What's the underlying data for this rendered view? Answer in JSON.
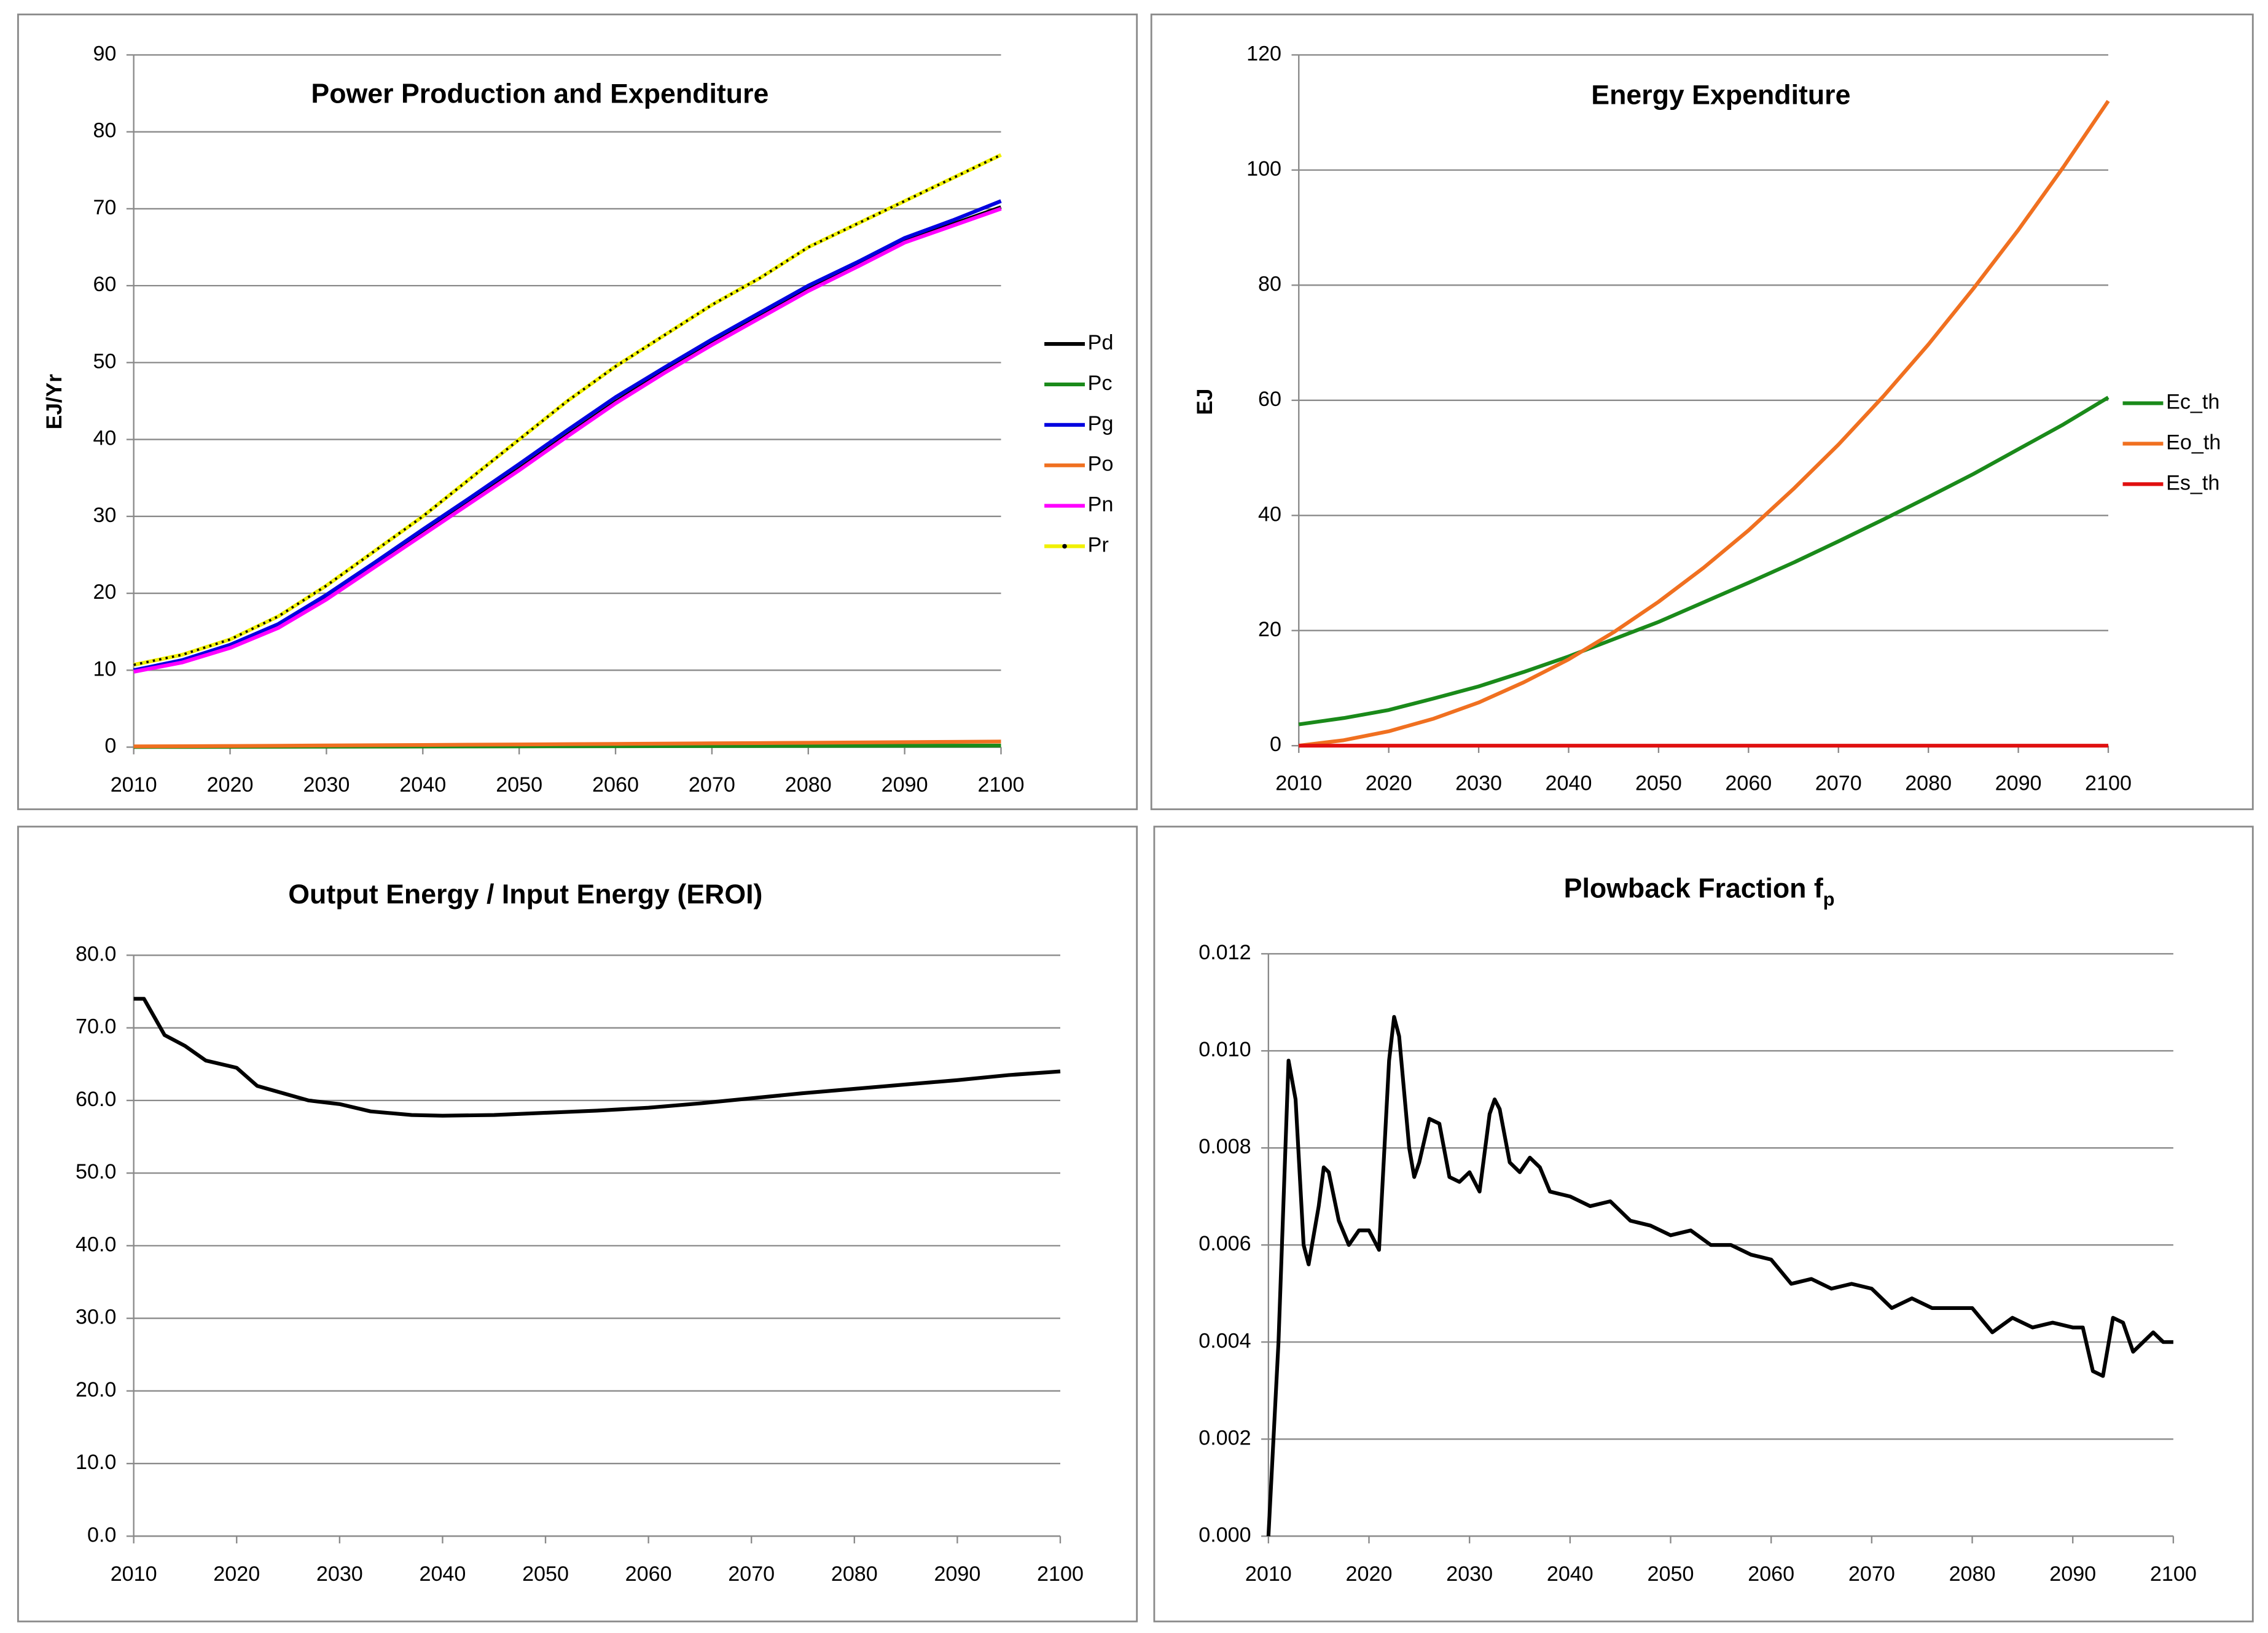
{
  "chart_data": [
    {
      "type": "line",
      "title": "Power Production and Expenditure",
      "y_label": "EJ/Yr",
      "x": [
        2010,
        2015,
        2020,
        2025,
        2030,
        2035,
        2040,
        2045,
        2050,
        2055,
        2060,
        2065,
        2070,
        2075,
        2080,
        2085,
        2090,
        2095,
        2100
      ],
      "series": [
        {
          "name": "Pd",
          "color": "#000000",
          "values": [
            10,
            11.2,
            13.1,
            15.7,
            19.4,
            23.6,
            27.8,
            32,
            36.2,
            40.6,
            44.9,
            48.8,
            52.5,
            56,
            59.5,
            62.6,
            65.8,
            68,
            70.2
          ]
        },
        {
          "name": "Pc",
          "color": "#1a8a1a",
          "values": [
            0.02,
            0.03,
            0.04,
            0.05,
            0.06,
            0.07,
            0.08,
            0.09,
            0.1,
            0.11,
            0.12,
            0.13,
            0.14,
            0.15,
            0.16,
            0.17,
            0.18,
            0.19,
            0.2
          ]
        },
        {
          "name": "Pg",
          "color": "#0000e0",
          "values": [
            10,
            11.3,
            13.3,
            16,
            19.8,
            24,
            28.3,
            32.5,
            36.8,
            41.2,
            45.5,
            49.3,
            53,
            56.5,
            60,
            63,
            66.2,
            68.5,
            71
          ]
        },
        {
          "name": "Po",
          "color": "#f07020",
          "values": [
            0.1,
            0.12,
            0.15,
            0.18,
            0.22,
            0.25,
            0.28,
            0.32,
            0.35,
            0.39,
            0.42,
            0.46,
            0.5,
            0.53,
            0.57,
            0.61,
            0.65,
            0.69,
            0.73
          ]
        },
        {
          "name": "Pn",
          "color": "#ff00ff",
          "values": [
            9.8,
            11,
            12.9,
            15.5,
            19.2,
            23.4,
            27.6,
            31.8,
            36,
            40.4,
            44.7,
            48.6,
            52.3,
            55.8,
            59.3,
            62.4,
            65.6,
            67.8,
            70
          ]
        },
        {
          "name": "Pr",
          "color": "#f0f000",
          "marker_color": "#000000",
          "values": [
            10.7,
            12,
            14,
            17,
            21,
            25.5,
            30,
            35,
            40,
            45,
            49.5,
            53.5,
            57.5,
            61,
            65,
            68,
            71,
            74,
            77
          ]
        }
      ],
      "xlim": [
        2010,
        2100
      ],
      "xticks": [
        2010,
        2020,
        2030,
        2040,
        2050,
        2060,
        2070,
        2080,
        2090,
        2100
      ],
      "ylim": [
        0,
        90
      ],
      "yticks": [
        0,
        10,
        20,
        30,
        40,
        50,
        60,
        70,
        80,
        90
      ],
      "grid": true,
      "legend": "right"
    },
    {
      "type": "line",
      "title": "Energy Expenditure",
      "y_label": "EJ",
      "x": [
        2010,
        2015,
        2020,
        2025,
        2030,
        2035,
        2040,
        2045,
        2050,
        2055,
        2060,
        2065,
        2070,
        2075,
        2080,
        2085,
        2090,
        2095,
        2100
      ],
      "series": [
        {
          "name": "Ec_th",
          "color": "#1a8a1a",
          "values": [
            3.7,
            4.8,
            6.2,
            8.2,
            10.3,
            12.8,
            15.5,
            18.5,
            21.5,
            24.9,
            28.3,
            31.8,
            35.5,
            39.3,
            43.2,
            47.2,
            51.5,
            55.8,
            60.5
          ]
        },
        {
          "name": "Eo_th",
          "color": "#f07020",
          "values": [
            0,
            0.95,
            2.5,
            4.7,
            7.5,
            11,
            15,
            19.7,
            25,
            30.9,
            37.4,
            44.6,
            52.3,
            60.7,
            69.7,
            79.4,
            89.6,
            100.5,
            112
          ]
        },
        {
          "name": "Es_th",
          "color": "#e01010",
          "values": [
            0,
            0,
            0,
            0,
            0,
            0,
            0,
            0,
            0,
            0,
            0,
            0,
            0,
            0,
            0,
            0,
            0,
            0,
            0
          ]
        }
      ],
      "xlim": [
        2010,
        2100
      ],
      "xticks": [
        2010,
        2020,
        2030,
        2040,
        2050,
        2060,
        2070,
        2080,
        2090,
        2100
      ],
      "ylim": [
        0,
        120
      ],
      "yticks": [
        0,
        20,
        40,
        60,
        80,
        100,
        120
      ],
      "grid": true,
      "legend": "right"
    },
    {
      "type": "line",
      "title": "Output Energy / Input Energy (EROI)",
      "x": [
        2010,
        2011,
        2013,
        2015,
        2017,
        2020,
        2022,
        2025,
        2027,
        2030,
        2033,
        2037,
        2040,
        2045,
        2050,
        2055,
        2060,
        2065,
        2070,
        2075,
        2080,
        2085,
        2090,
        2095,
        2100
      ],
      "series": [
        {
          "color": "#000000",
          "values": [
            74,
            74,
            69,
            67.5,
            65.5,
            64.5,
            62,
            60.8,
            60,
            59.5,
            58.5,
            58,
            57.9,
            58,
            58.3,
            58.6,
            59,
            59.6,
            60.3,
            61,
            61.6,
            62.2,
            62.8,
            63.5,
            64
          ]
        }
      ],
      "xlim": [
        2010,
        2100
      ],
      "xticks": [
        2010,
        2020,
        2030,
        2040,
        2050,
        2060,
        2070,
        2080,
        2090,
        2100
      ],
      "ylim": [
        0,
        80
      ],
      "yticks": [
        {
          "value": 0,
          "label": "0.0"
        },
        {
          "value": 10,
          "label": "10.0"
        },
        {
          "value": 20,
          "label": "20.0"
        },
        {
          "value": 30,
          "label": "30.0"
        },
        {
          "value": 40,
          "label": "40.0"
        },
        {
          "value": 50,
          "label": "50.0"
        },
        {
          "value": 60,
          "label": "60.0"
        },
        {
          "value": 70,
          "label": "70.0"
        },
        {
          "value": 80,
          "label": "80.0"
        }
      ],
      "grid": true
    },
    {
      "type": "line",
      "title": "Plowback Fraction f",
      "title_subscript": "p",
      "x": [
        2010,
        2011,
        2012,
        2012.7,
        2013.5,
        2014,
        2015,
        2015.5,
        2016,
        2017,
        2018,
        2019,
        2020,
        2021,
        2022,
        2022.5,
        2023,
        2024,
        2024.5,
        2025,
        2026,
        2027,
        2028,
        2029,
        2030,
        2031,
        2032,
        2032.5,
        2033,
        2034,
        2035,
        2036,
        2037,
        2038,
        2040,
        2042,
        2044,
        2046,
        2048,
        2050,
        2052,
        2054,
        2056,
        2058,
        2060,
        2062,
        2064,
        2066,
        2068,
        2070,
        2072,
        2074,
        2076,
        2078,
        2080,
        2082,
        2084,
        2086,
        2088,
        2090,
        2091,
        2092,
        2093,
        2094,
        2095,
        2096,
        2097,
        2098,
        2099,
        2100
      ],
      "series": [
        {
          "color": "#000000",
          "values": [
            0,
            0.004,
            0.0098,
            0.009,
            0.006,
            0.0056,
            0.0068,
            0.0076,
            0.0075,
            0.0065,
            0.006,
            0.0063,
            0.0063,
            0.0059,
            0.0098,
            0.0107,
            0.0103,
            0.008,
            0.0074,
            0.0077,
            0.0086,
            0.0085,
            0.0074,
            0.0073,
            0.0075,
            0.0071,
            0.0087,
            0.009,
            0.0088,
            0.0077,
            0.0075,
            0.0078,
            0.0076,
            0.0071,
            0.007,
            0.0068,
            0.0069,
            0.0065,
            0.0064,
            0.0062,
            0.0063,
            0.006,
            0.006,
            0.0058,
            0.0057,
            0.0052,
            0.0053,
            0.0051,
            0.0052,
            0.0051,
            0.0047,
            0.0049,
            0.0047,
            0.0047,
            0.0047,
            0.0042,
            0.0045,
            0.0043,
            0.0044,
            0.0043,
            0.0043,
            0.0034,
            0.0033,
            0.0045,
            0.0044,
            0.0038,
            0.004,
            0.0042,
            0.004,
            0.004
          ]
        }
      ],
      "xlim": [
        2010,
        2100
      ],
      "xticks": [
        2010,
        2020,
        2030,
        2040,
        2050,
        2060,
        2070,
        2080,
        2090,
        2100
      ],
      "ylim": [
        0,
        0.012
      ],
      "yticks": [
        {
          "value": 0,
          "label": "0.000"
        },
        {
          "value": 0.002,
          "label": "0.002"
        },
        {
          "value": 0.004,
          "label": "0.004"
        },
        {
          "value": 0.006,
          "label": "0.006"
        },
        {
          "value": 0.008,
          "label": "0.008"
        },
        {
          "value": 0.01,
          "label": "0.010"
        },
        {
          "value": 0.012,
          "label": "0.012"
        }
      ],
      "grid": true
    }
  ]
}
